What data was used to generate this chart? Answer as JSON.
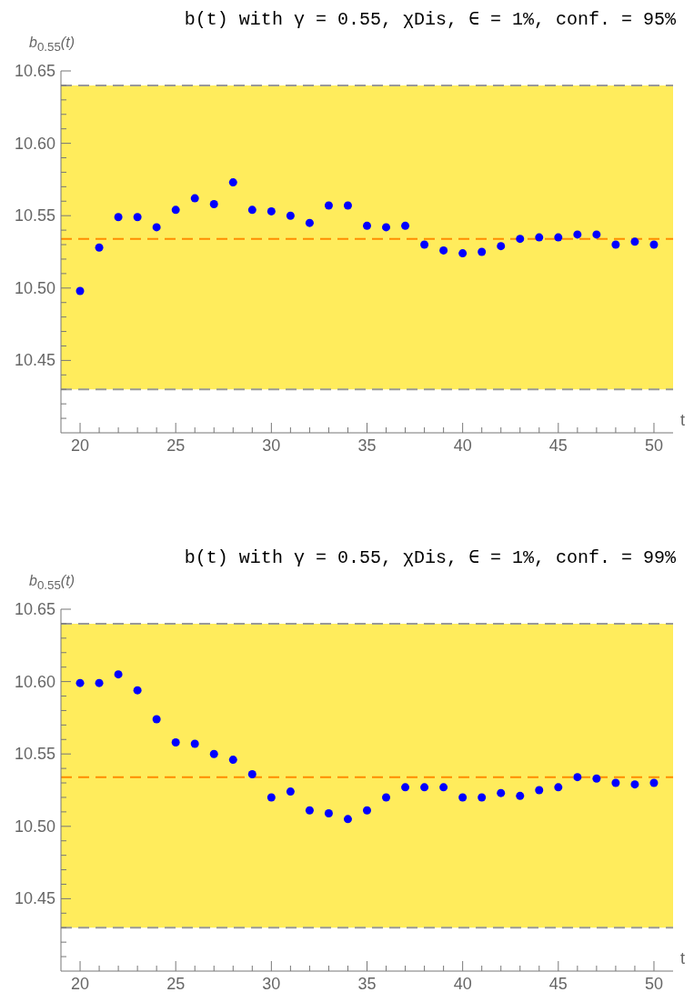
{
  "chart_data": [
    {
      "type": "scatter",
      "title": "b(t) with γ = 0.55, χDis, ∈ = 1%, conf. = 95%",
      "xlabel": "t",
      "ylabel": "b$_{0.55}$(t)",
      "x": [
        20,
        21,
        22,
        23,
        24,
        25,
        26,
        27,
        28,
        29,
        30,
        31,
        32,
        33,
        34,
        35,
        36,
        37,
        38,
        39,
        40,
        41,
        42,
        43,
        44,
        45,
        46,
        47,
        48,
        49,
        50
      ],
      "series": [
        {
          "color": "#0000ff",
          "values": [
            10.498,
            10.528,
            10.549,
            10.549,
            10.542,
            10.554,
            10.562,
            10.558,
            10.573,
            10.554,
            10.553,
            10.55,
            10.545,
            10.557,
            10.557,
            10.543,
            10.542,
            10.543,
            10.53,
            10.526,
            10.524,
            10.525,
            10.529,
            10.534,
            10.535,
            10.535,
            10.537,
            10.537,
            10.53,
            10.532,
            10.53
          ]
        }
      ],
      "marker": "circle",
      "grid": false,
      "legend": false,
      "xlim": [
        19,
        51
      ],
      "ylim": [
        10.4,
        10.65
      ],
      "xticks": [
        {
          "value": 20,
          "label": "20"
        },
        {
          "value": 21,
          "label": null
        },
        {
          "value": 22,
          "label": null
        },
        {
          "value": 23,
          "label": null
        },
        {
          "value": 24,
          "label": null
        },
        25,
        {
          "value": 26,
          "label": null
        },
        {
          "value": 27,
          "label": null
        },
        {
          "value": 28,
          "label": null
        },
        {
          "value": 29,
          "label": null
        },
        30,
        {
          "value": 31,
          "label": null
        },
        {
          "value": 32,
          "label": null
        },
        {
          "value": 33,
          "label": null
        },
        {
          "value": 34,
          "label": null
        },
        35,
        {
          "value": 36,
          "label": null
        },
        {
          "value": 37,
          "label": null
        },
        {
          "value": 38,
          "label": null
        },
        {
          "value": 39,
          "label": null
        },
        40,
        {
          "value": 41,
          "label": null
        },
        {
          "value": 42,
          "label": null
        },
        {
          "value": 43,
          "label": null
        },
        {
          "value": 44,
          "label": null
        },
        45,
        {
          "value": 46,
          "label": null
        },
        {
          "value": 47,
          "label": null
        },
        {
          "value": 48,
          "label": null
        },
        {
          "value": 49,
          "label": null
        },
        50
      ],
      "yticks": [
        {
          "value": 10.41,
          "label": null
        },
        {
          "value": 10.42,
          "label": null
        },
        {
          "value": 10.43,
          "label": null
        },
        {
          "value": 10.44,
          "label": null
        },
        10.45,
        {
          "value": 10.46,
          "label": null
        },
        {
          "value": 10.47,
          "label": null
        },
        {
          "value": 10.48,
          "label": null
        },
        {
          "value": 10.49,
          "label": null
        },
        {
          "value": 10.5,
          "label": "10.50"
        },
        {
          "value": 10.51,
          "label": null
        },
        {
          "value": 10.52,
          "label": null
        },
        {
          "value": 10.53,
          "label": null
        },
        {
          "value": 10.54,
          "label": null
        },
        10.55,
        {
          "value": 10.56,
          "label": null
        },
        {
          "value": 10.57,
          "label": null
        },
        {
          "value": 10.58,
          "label": null
        },
        {
          "value": 10.59,
          "label": null
        },
        {
          "value": 10.6,
          "label": "10.60"
        },
        {
          "value": 10.61,
          "label": null
        },
        {
          "value": 10.62,
          "label": null
        },
        {
          "value": 10.63,
          "label": null
        },
        {
          "value": 10.64,
          "label": null
        },
        10.65
      ],
      "bands": [
        {
          "axis": "y",
          "from": 10.43,
          "to": 10.64,
          "color": "#ffec5c"
        }
      ],
      "ref_lines": [
        {
          "axis": "y",
          "value": 10.43,
          "color": "#999999",
          "line_style": "dashed"
        },
        {
          "axis": "y",
          "value": 10.64,
          "color": "#999999",
          "line_style": "dashed"
        },
        {
          "axis": "y",
          "value": 10.534,
          "color": "#ff8c00",
          "line_style": "dashed"
        }
      ]
    },
    {
      "type": "scatter",
      "title": "b(t) with γ = 0.55, χDis, ∈ = 1%, conf. = 99%",
      "xlabel": "t",
      "ylabel": "b$_{0.55}$(t)",
      "x": [
        20,
        21,
        22,
        23,
        24,
        25,
        26,
        27,
        28,
        29,
        30,
        31,
        32,
        33,
        34,
        35,
        36,
        37,
        38,
        39,
        40,
        41,
        42,
        43,
        44,
        45,
        46,
        47,
        48,
        49,
        50
      ],
      "series": [
        {
          "color": "#0000ff",
          "values": [
            10.599,
            10.599,
            10.605,
            10.594,
            10.574,
            10.558,
            10.557,
            10.55,
            10.546,
            10.536,
            10.52,
            10.524,
            10.511,
            10.509,
            10.505,
            10.511,
            10.52,
            10.527,
            10.527,
            10.527,
            10.52,
            10.52,
            10.523,
            10.521,
            10.525,
            10.527,
            10.534,
            10.533,
            10.53,
            10.529,
            10.53
          ]
        }
      ],
      "marker": "circle",
      "grid": false,
      "legend": false,
      "xlim": [
        19,
        51
      ],
      "ylim": [
        10.4,
        10.65
      ],
      "xticks": [
        {
          "value": 20,
          "label": "20"
        },
        {
          "value": 21,
          "label": null
        },
        {
          "value": 22,
          "label": null
        },
        {
          "value": 23,
          "label": null
        },
        {
          "value": 24,
          "label": null
        },
        25,
        {
          "value": 26,
          "label": null
        },
        {
          "value": 27,
          "label": null
        },
        {
          "value": 28,
          "label": null
        },
        {
          "value": 29,
          "label": null
        },
        30,
        {
          "value": 31,
          "label": null
        },
        {
          "value": 32,
          "label": null
        },
        {
          "value": 33,
          "label": null
        },
        {
          "value": 34,
          "label": null
        },
        35,
        {
          "value": 36,
          "label": null
        },
        {
          "value": 37,
          "label": null
        },
        {
          "value": 38,
          "label": null
        },
        {
          "value": 39,
          "label": null
        },
        40,
        {
          "value": 41,
          "label": null
        },
        {
          "value": 42,
          "label": null
        },
        {
          "value": 43,
          "label": null
        },
        {
          "value": 44,
          "label": null
        },
        45,
        {
          "value": 46,
          "label": null
        },
        {
          "value": 47,
          "label": null
        },
        {
          "value": 48,
          "label": null
        },
        {
          "value": 49,
          "label": null
        },
        50
      ],
      "yticks": [
        {
          "value": 10.41,
          "label": null
        },
        {
          "value": 10.42,
          "label": null
        },
        {
          "value": 10.43,
          "label": null
        },
        {
          "value": 10.44,
          "label": null
        },
        10.45,
        {
          "value": 10.46,
          "label": null
        },
        {
          "value": 10.47,
          "label": null
        },
        {
          "value": 10.48,
          "label": null
        },
        {
          "value": 10.49,
          "label": null
        },
        {
          "value": 10.5,
          "label": "10.50"
        },
        {
          "value": 10.51,
          "label": null
        },
        {
          "value": 10.52,
          "label": null
        },
        {
          "value": 10.53,
          "label": null
        },
        {
          "value": 10.54,
          "label": null
        },
        10.55,
        {
          "value": 10.56,
          "label": null
        },
        {
          "value": 10.57,
          "label": null
        },
        {
          "value": 10.58,
          "label": null
        },
        {
          "value": 10.59,
          "label": null
        },
        {
          "value": 10.6,
          "label": "10.60"
        },
        {
          "value": 10.61,
          "label": null
        },
        {
          "value": 10.62,
          "label": null
        },
        {
          "value": 10.63,
          "label": null
        },
        {
          "value": 10.64,
          "label": null
        },
        10.65
      ],
      "bands": [
        {
          "axis": "y",
          "from": 10.43,
          "to": 10.64,
          "color": "#ffec5c"
        }
      ],
      "ref_lines": [
        {
          "axis": "y",
          "value": 10.43,
          "color": "#999999",
          "line_style": "dashed"
        },
        {
          "axis": "y",
          "value": 10.64,
          "color": "#999999",
          "line_style": "dashed"
        },
        {
          "axis": "y",
          "value": 10.534,
          "color": "#ff8c00",
          "line_style": "dashed"
        }
      ]
    }
  ]
}
